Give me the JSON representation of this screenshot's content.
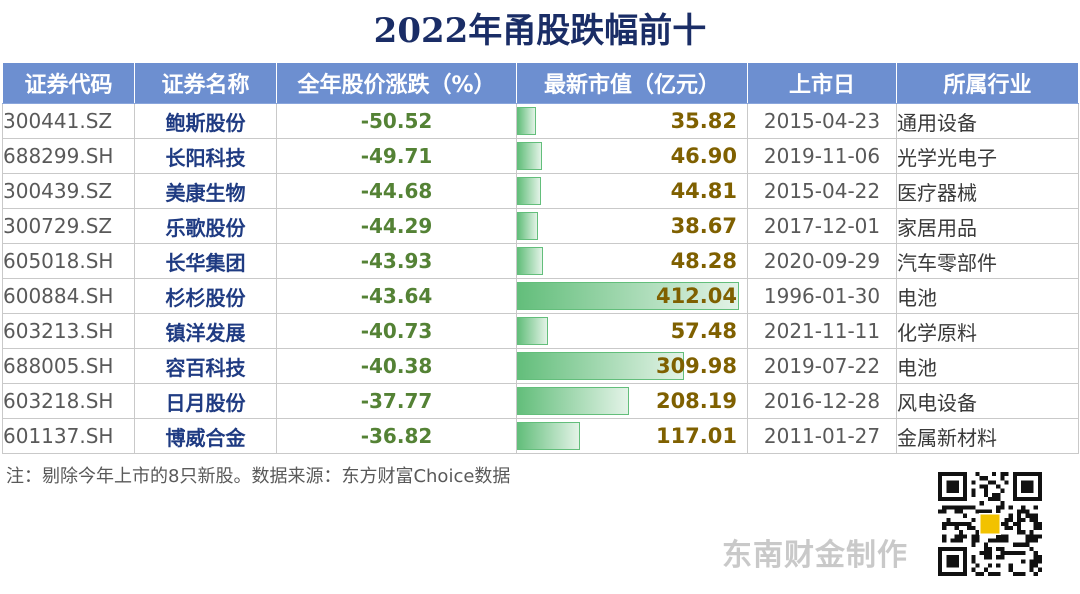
{
  "title": "2022年甬股跌幅前十",
  "headers": [
    "证券代码",
    "证券名称",
    "全年股价涨跌（%）",
    "最新市值（亿元）",
    "上市日",
    "所属行业"
  ],
  "rows": [
    {
      "code": "300441.SZ",
      "name": "鲍斯股份",
      "change": "-50.52",
      "mcap": 35.82,
      "mcap_text": "35.82",
      "date": "2015-04-23",
      "industry": "通用设备"
    },
    {
      "code": "688299.SH",
      "name": "长阳科技",
      "change": "-49.71",
      "mcap": 46.9,
      "mcap_text": "46.90",
      "date": "2019-11-06",
      "industry": "光学光电子"
    },
    {
      "code": "300439.SZ",
      "name": "美康生物",
      "change": "-44.68",
      "mcap": 44.81,
      "mcap_text": "44.81",
      "date": "2015-04-22",
      "industry": "医疗器械"
    },
    {
      "code": "300729.SZ",
      "name": "乐歌股份",
      "change": "-44.29",
      "mcap": 38.67,
      "mcap_text": "38.67",
      "date": "2017-12-01",
      "industry": "家居用品"
    },
    {
      "code": "605018.SH",
      "name": "长华集团",
      "change": "-43.93",
      "mcap": 48.28,
      "mcap_text": "48.28",
      "date": "2020-09-29",
      "industry": "汽车零部件"
    },
    {
      "code": "600884.SH",
      "name": "杉杉股份",
      "change": "-43.64",
      "mcap": 412.04,
      "mcap_text": "412.04",
      "date": "1996-01-30",
      "industry": "电池"
    },
    {
      "code": "603213.SH",
      "name": "镇洋发展",
      "change": "-40.73",
      "mcap": 57.48,
      "mcap_text": "57.48",
      "date": "2021-11-11",
      "industry": "化学原料"
    },
    {
      "code": "688005.SH",
      "name": "容百科技",
      "change": "-40.38",
      "mcap": 309.98,
      "mcap_text": "309.98",
      "date": "2019-07-22",
      "industry": "电池"
    },
    {
      "code": "603218.SH",
      "name": "日月股份",
      "change": "-37.77",
      "mcap": 208.19,
      "mcap_text": "208.19",
      "date": "2016-12-28",
      "industry": "风电设备"
    },
    {
      "code": "601137.SH",
      "name": "博威合金",
      "change": "-36.82",
      "mcap": 117.01,
      "mcap_text": "117.01",
      "date": "2011-01-27",
      "industry": "金属新材料"
    }
  ],
  "note": "注：剔除今年上市的8只新股。数据来源：东方财富Choice数据",
  "watermark": "东南财金制作",
  "colors": {
    "header_bg": "#6d8fd0",
    "title": "#1a2d66",
    "name": "#1f3b82",
    "change": "#548235",
    "mcap": "#7f6000",
    "bar": "#63be7b"
  }
}
